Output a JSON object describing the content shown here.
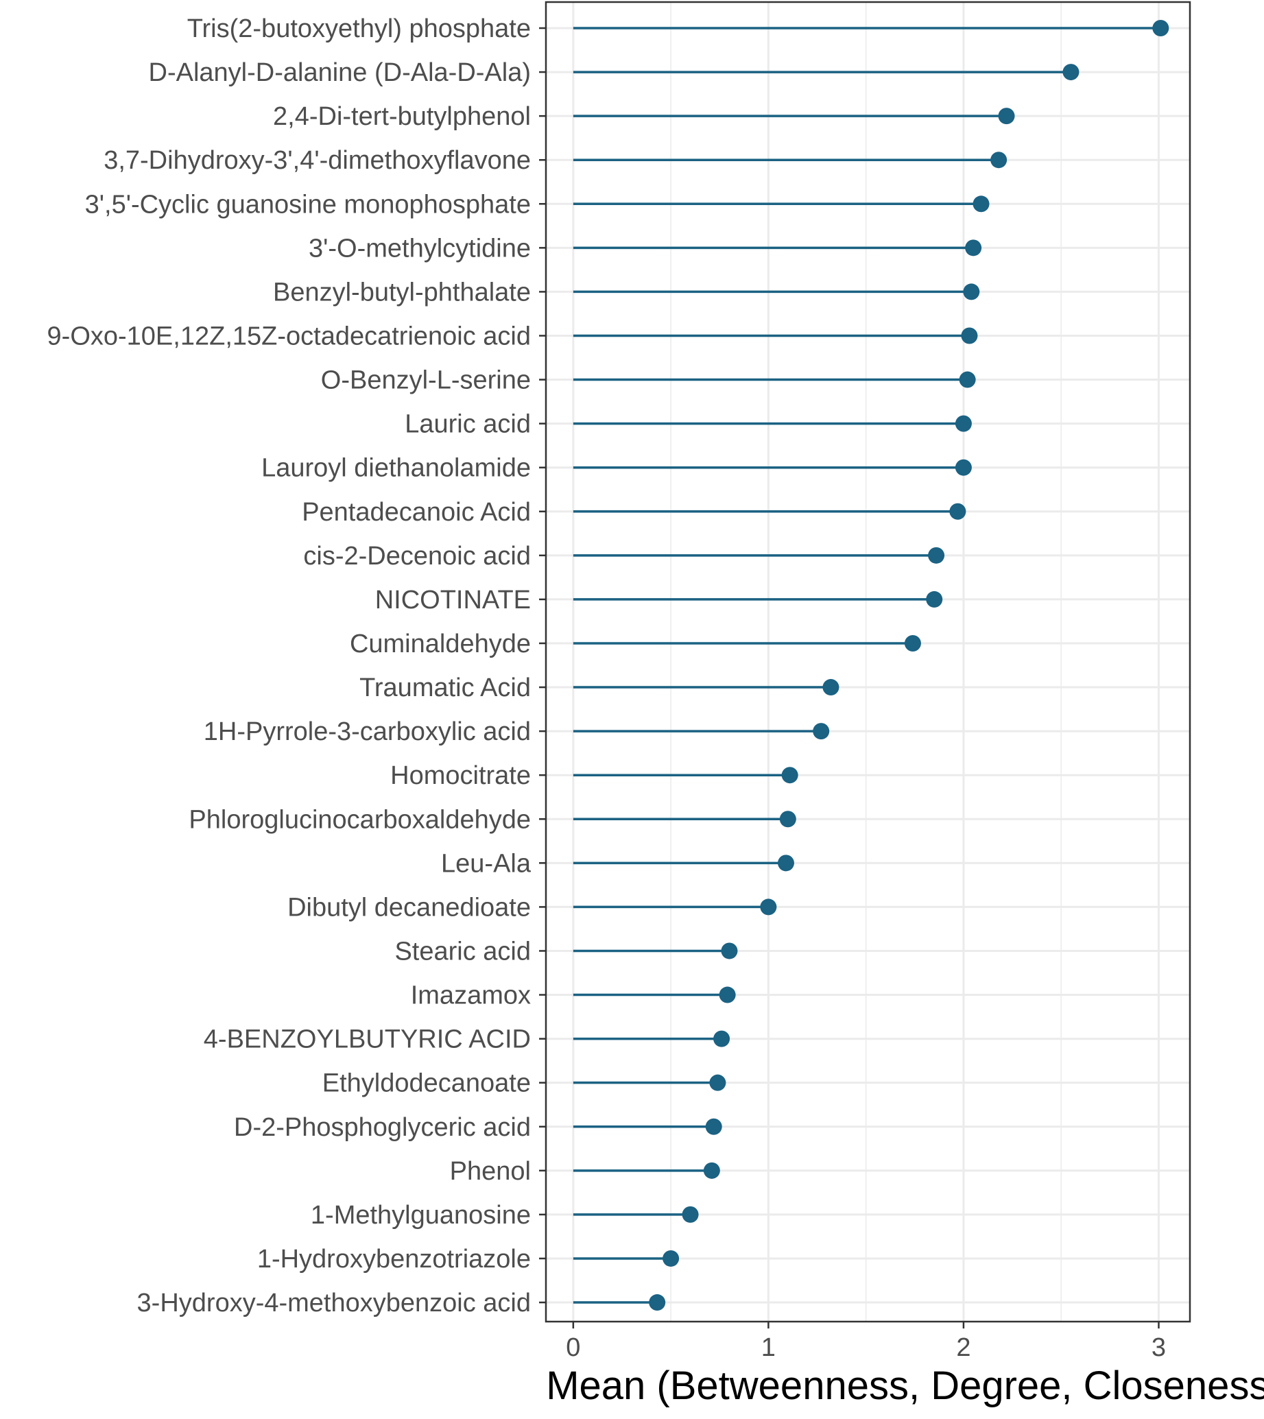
{
  "chart_data": {
    "type": "lollipop",
    "categories": [
      "Tris(2-butoxyethyl) phosphate",
      "D-Alanyl-D-alanine (D-Ala-D-Ala)",
      "2,4-Di-tert-butylphenol",
      "3,7-Dihydroxy-3',4'-dimethoxyflavone",
      "3',5'-Cyclic guanosine monophosphate",
      "3'-O-methylcytidine",
      "Benzyl-butyl-phthalate",
      "9-Oxo-10E,12Z,15Z-octadecatrienoic acid",
      "O-Benzyl-L-serine",
      "Lauric acid",
      "Lauroyl diethanolamide",
      "Pentadecanoic Acid",
      "cis-2-Decenoic acid",
      "NICOTINATE",
      "Cuminaldehyde",
      "Traumatic Acid",
      "1H-Pyrrole-3-carboxylic acid",
      "Homocitrate",
      "Phloroglucinocarboxaldehyde",
      "Leu-Ala",
      "Dibutyl decanedioate",
      "Stearic acid",
      "Imazamox",
      "4-BENZOYLBUTYRIC ACID",
      "Ethyldodecanoate",
      "D-2-Phosphoglyceric acid",
      "Phenol",
      "1-Methylguanosine",
      "1-Hydroxybenzotriazole",
      "3-Hydroxy-4-methoxybenzoic acid"
    ],
    "values": [
      3.01,
      2.55,
      2.22,
      2.18,
      2.09,
      2.05,
      2.04,
      2.03,
      2.02,
      2.0,
      2.0,
      1.97,
      1.86,
      1.85,
      1.74,
      1.32,
      1.27,
      1.11,
      1.1,
      1.09,
      1.0,
      0.8,
      0.79,
      0.76,
      0.74,
      0.72,
      0.71,
      0.6,
      0.5,
      0.43
    ],
    "xlabel": "Mean (Betweenness, Degree, Closeness)",
    "ylabel": "",
    "title": "",
    "xlim": [
      -0.14,
      3.16
    ],
    "x_ticks": [
      "0",
      "1",
      "2",
      "3"
    ],
    "x_tick_values": [
      0,
      1,
      2,
      3
    ],
    "grid": true,
    "colors": {
      "marker": "#1b6283",
      "grid": "#ebebeb",
      "panel_border": "#333333",
      "tick": "#333333"
    }
  }
}
